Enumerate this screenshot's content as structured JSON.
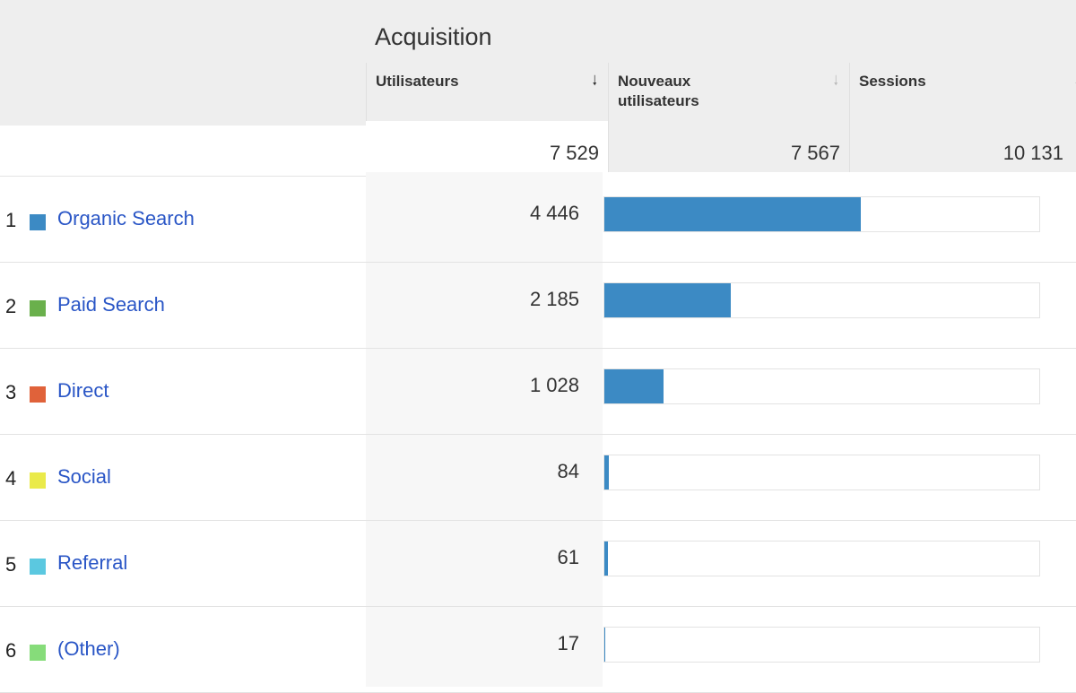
{
  "section_title": "Acquisition",
  "columns": [
    {
      "label": "Utilisateurs",
      "total": "7 529",
      "sorted": true
    },
    {
      "label": "Nouveaux utilisateurs",
      "total": "7 567",
      "sorted": false
    },
    {
      "label": "Sessions",
      "total": "10 131",
      "sorted": false
    }
  ],
  "total_users": 7529,
  "bar_color": "#3c8ac4",
  "link_color": "#2a56c6",
  "rows": [
    {
      "rank": "1",
      "name": "Organic Search",
      "users": "4 446",
      "value": 4446,
      "color": "#3c8ac4"
    },
    {
      "rank": "2",
      "name": "Paid Search",
      "users": "2 185",
      "value": 2185,
      "color": "#6ab04c"
    },
    {
      "rank": "3",
      "name": "Direct",
      "users": "1 028",
      "value": 1028,
      "color": "#e0623a"
    },
    {
      "rank": "4",
      "name": "Social",
      "users": "84",
      "value": 84,
      "color": "#eaea4a"
    },
    {
      "rank": "5",
      "name": "Referral",
      "users": "61",
      "value": 61,
      "color": "#5bc8e0"
    },
    {
      "rank": "6",
      "name": "(Other)",
      "users": "17",
      "value": 17,
      "color": "#86dc7a"
    }
  ]
}
